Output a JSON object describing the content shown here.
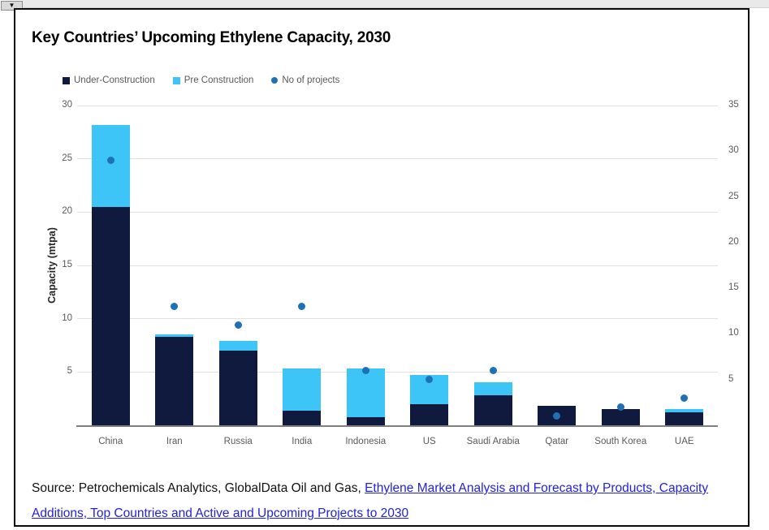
{
  "window": {
    "dropdown_icon": "▼"
  },
  "title": "Key Countries’ Upcoming Ethylene Capacity, 2030",
  "source": {
    "prefix": "Source: Petrochemicals Analytics, GlobalData Oil and Gas, ",
    "link_lines": [
      "Ethylene Market Analysis and Forecast by Products, Capacity",
      "Additions, Top Countries and Active and Upcoming Projects to 2030"
    ]
  },
  "colors": {
    "under_construction": "#0f1a3e",
    "pre_construction": "#3dc5f8",
    "projects_dot": "#1f71b7",
    "gridline": "#e0e0e0",
    "axis_line": "#7f7f7f",
    "tick_text": "#595959",
    "link": "#2222dd"
  },
  "chart_data": {
    "type": "bar",
    "title": "Key Countries’ Upcoming Ethylene Capacity, 2030",
    "categories": [
      "China",
      "Iran",
      "Russia",
      "India",
      "Indonesia",
      "US",
      "Saudi Arabia",
      "Qatar",
      "South Korea",
      "UAE"
    ],
    "series": [
      {
        "name": "Under-Construction",
        "type": "bar",
        "axis": "left",
        "color": "#0f1a3e",
        "values": [
          20.5,
          8.3,
          7.0,
          1.4,
          0.8,
          2.0,
          2.8,
          1.8,
          1.5,
          1.2
        ]
      },
      {
        "name": "Pre Construction",
        "type": "bar",
        "axis": "left",
        "color": "#3dc5f8",
        "values": [
          7.7,
          0.2,
          0.9,
          3.9,
          4.5,
          2.7,
          1.2,
          0.0,
          0.0,
          0.3
        ]
      },
      {
        "name": "No of projects",
        "type": "scatter",
        "axis": "right",
        "color": "#1f71b7",
        "values": [
          29,
          13,
          11,
          13,
          6,
          5,
          6,
          1,
          2,
          3
        ]
      }
    ],
    "left_axis": {
      "label": "Capacity (mtpa)",
      "min": 0,
      "max": 30,
      "ticks": [
        5,
        10,
        15,
        20,
        25,
        30
      ]
    },
    "right_axis": {
      "label": "",
      "min": 0,
      "max": 35,
      "ticks": [
        5,
        10,
        15,
        20,
        25,
        30,
        35
      ]
    },
    "grid": true,
    "legend_position": "top-left",
    "bar_stacked": true
  }
}
